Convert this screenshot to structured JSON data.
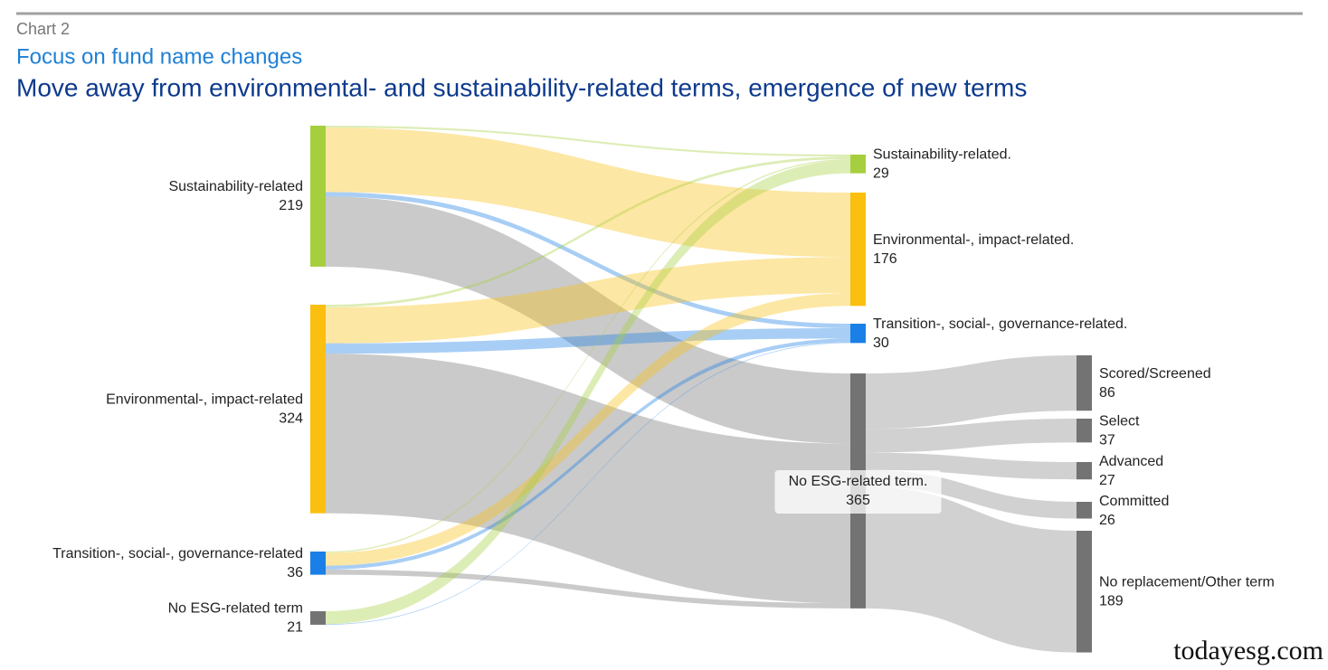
{
  "chart_data": {
    "type": "sankey",
    "chart_label": "Chart 2",
    "subtitle": "Focus on fund name changes",
    "title": "Move away from environmental- and sustainability-related terms, emergence of new terms",
    "watermark": "todayesg.com",
    "nodes": [
      {
        "name": "Sustainability-related",
        "value": 219,
        "color": "#a6cf3f"
      },
      {
        "name": "Environmental-, impact-related",
        "value": 324,
        "color": "#fbbf0f"
      },
      {
        "name": "Transition-, social-, governance-related",
        "value": 36,
        "color": "#1a7fe6"
      },
      {
        "name": "No ESG-related term",
        "value": 21,
        "color": "#737373"
      },
      {
        "name": "Sustainability-related.",
        "value": 29,
        "color": "#a6cf3f"
      },
      {
        "name": "Environmental-, impact-related.",
        "value": 176,
        "color": "#fbbf0f"
      },
      {
        "name": "Transition-, social-, governance-related.",
        "value": 30,
        "color": "#1a7fe6"
      },
      {
        "name": "No ESG-related term.",
        "value": 365,
        "color": "#737373"
      },
      {
        "name": "Scored/Screened",
        "value": 86,
        "color": "#737373"
      },
      {
        "name": "Select",
        "value": 37,
        "color": "#737373"
      },
      {
        "name": "Advanced",
        "value": 27,
        "color": "#737373"
      },
      {
        "name": "Committed",
        "value": 26,
        "color": "#737373"
      },
      {
        "name": "No replacement/Other term",
        "value": 189,
        "color": "#737373"
      }
    ],
    "links": [
      {
        "source": 0,
        "target": 4,
        "value": 3
      },
      {
        "source": 0,
        "target": 5,
        "value": 100
      },
      {
        "source": 0,
        "target": 6,
        "value": 7
      },
      {
        "source": 0,
        "target": 7,
        "value": 109
      },
      {
        "source": 1,
        "target": 4,
        "value": 4
      },
      {
        "source": 1,
        "target": 5,
        "value": 56
      },
      {
        "source": 1,
        "target": 6,
        "value": 16
      },
      {
        "source": 1,
        "target": 7,
        "value": 248
      },
      {
        "source": 2,
        "target": 4,
        "value": 2
      },
      {
        "source": 2,
        "target": 5,
        "value": 20
      },
      {
        "source": 2,
        "target": 6,
        "value": 6
      },
      {
        "source": 2,
        "target": 7,
        "value": 8
      },
      {
        "source": 3,
        "target": 4,
        "value": 20
      },
      {
        "source": 3,
        "target": 6,
        "value": 1
      },
      {
        "source": 7,
        "target": 8,
        "value": 86
      },
      {
        "source": 7,
        "target": 9,
        "value": 37
      },
      {
        "source": 7,
        "target": 10,
        "value": 27
      },
      {
        "source": 7,
        "target": 11,
        "value": 26
      },
      {
        "source": 7,
        "target": 12,
        "value": 189
      }
    ]
  }
}
